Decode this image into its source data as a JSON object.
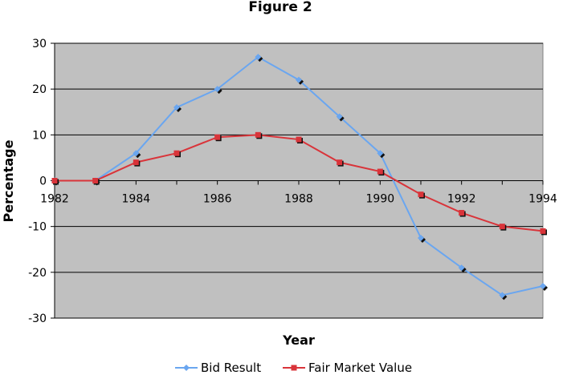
{
  "chart_data": {
    "type": "line",
    "title": "Figure 2",
    "xlabel": "Year",
    "ylabel": "Percentage",
    "x": [
      1982,
      1983,
      1984,
      1985,
      1986,
      1987,
      1988,
      1989,
      1990,
      1991,
      1992,
      1993,
      1994
    ],
    "x_tick_labels": [
      "1982",
      "1984",
      "1986",
      "1988",
      "1990",
      "1992",
      "1994"
    ],
    "y_tick_labels": [
      "30",
      "20",
      "10",
      "0",
      "-10",
      "-20",
      "-30"
    ],
    "ylim": [
      -30,
      30
    ],
    "xlim": [
      1982,
      1994
    ],
    "grid": true,
    "legend_position": "bottom",
    "series": [
      {
        "name": "Bid Result",
        "color": "#6aa6f0",
        "marker": "diamond",
        "values": [
          0,
          0,
          6,
          16,
          20,
          27,
          22,
          14,
          6,
          -12.5,
          -19,
          -25,
          -23
        ]
      },
      {
        "name": "Fair Market Value",
        "color": "#d9343a",
        "marker": "square",
        "values": [
          0,
          0,
          4,
          6,
          9.5,
          10,
          9,
          4,
          2,
          -3,
          -7,
          -10,
          -11
        ]
      }
    ],
    "plot_background": "#c0c0c0"
  }
}
